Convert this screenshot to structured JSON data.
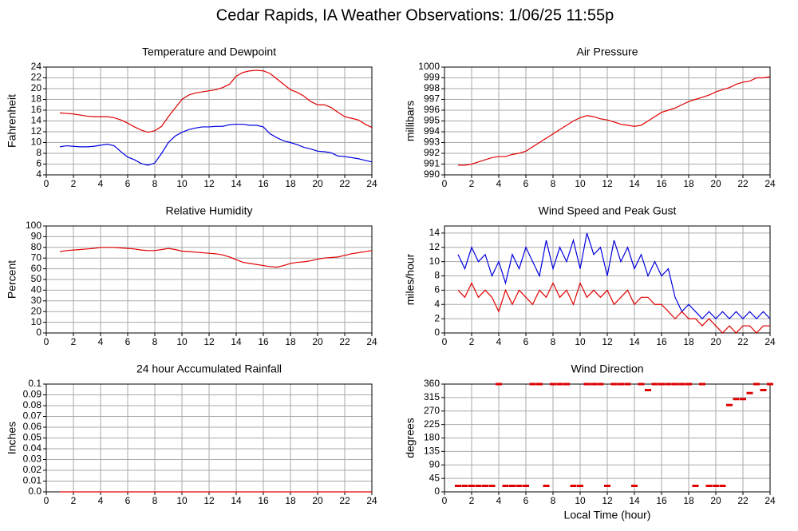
{
  "title": "Cedar Rapids, IA Weather Observations: 1/06/25 11:55p",
  "chart_data": [
    {
      "type": "line",
      "title": "Temperature and Dewpoint",
      "ylabel": "Fahrenheit",
      "xlim": [
        0,
        24
      ],
      "xticks": [
        0,
        2,
        4,
        6,
        8,
        10,
        12,
        14,
        16,
        18,
        20,
        22,
        24
      ],
      "ylim": [
        4,
        24
      ],
      "yticks": [
        4,
        6,
        8,
        10,
        12,
        14,
        16,
        18,
        20,
        22,
        24
      ],
      "grid": true,
      "x": [
        1,
        1.5,
        2,
        2.5,
        3,
        3.5,
        4,
        4.5,
        5,
        5.5,
        6,
        6.5,
        7,
        7.5,
        8,
        8.5,
        9,
        9.5,
        10,
        10.5,
        11,
        11.5,
        12,
        12.5,
        13,
        13.5,
        14,
        14.5,
        15,
        15.5,
        16,
        16.5,
        17,
        17.5,
        18,
        18.5,
        19,
        19.5,
        20,
        20.5,
        21,
        21.5,
        22,
        22.5,
        23,
        23.5,
        24
      ],
      "series": [
        {
          "color": "#e00000",
          "values": [
            15.5,
            15.4,
            15.3,
            15.1,
            14.9,
            14.8,
            14.8,
            14.8,
            14.6,
            14.2,
            13.6,
            12.9,
            12.3,
            11.9,
            12.2,
            13.0,
            14.8,
            16.4,
            18.0,
            18.8,
            19.2,
            19.4,
            19.6,
            19.8,
            20.2,
            20.8,
            22.3,
            23.0,
            23.3,
            23.4,
            23.3,
            22.8,
            21.8,
            20.8,
            19.8,
            19.3,
            18.6,
            17.6,
            17.0,
            17.0,
            16.5,
            15.6,
            14.8,
            14.5,
            14.2,
            13.4,
            12.8
          ]
        },
        {
          "color": "#0000e0",
          "values": [
            9.2,
            9.4,
            9.3,
            9.2,
            9.2,
            9.3,
            9.5,
            9.7,
            9.4,
            8.3,
            7.3,
            6.8,
            6.1,
            5.8,
            6.2,
            8.0,
            10.0,
            11.2,
            11.9,
            12.4,
            12.7,
            12.9,
            12.9,
            13.0,
            13.0,
            13.3,
            13.4,
            13.4,
            13.2,
            13.2,
            12.9,
            11.6,
            10.9,
            10.3,
            10.0,
            9.6,
            9.1,
            8.8,
            8.4,
            8.3,
            8.1,
            7.5,
            7.4,
            7.2,
            7.0,
            6.7,
            6.4
          ]
        }
      ]
    },
    {
      "type": "line",
      "title": "Air Pressure",
      "ylabel": "millibars",
      "xlim": [
        0,
        24
      ],
      "xticks": [
        0,
        2,
        4,
        6,
        8,
        10,
        12,
        14,
        16,
        18,
        20,
        22,
        24
      ],
      "ylim": [
        990,
        1000
      ],
      "yticks": [
        990,
        991,
        992,
        993,
        994,
        995,
        996,
        997,
        998,
        999,
        1000
      ],
      "grid": true,
      "x": [
        1,
        1.5,
        2,
        2.5,
        3,
        3.5,
        4,
        4.5,
        5,
        5.5,
        6,
        6.5,
        7,
        7.5,
        8,
        8.5,
        9,
        9.5,
        10,
        10.5,
        11,
        11.5,
        12,
        12.5,
        13,
        13.5,
        14,
        14.5,
        15,
        15.5,
        16,
        16.5,
        17,
        17.5,
        18,
        18.5,
        19,
        19.5,
        20,
        20.5,
        21,
        21.5,
        22,
        22.5,
        23,
        23.5,
        24
      ],
      "series": [
        {
          "color": "#e00000",
          "values": [
            990.9,
            990.9,
            991.0,
            991.2,
            991.4,
            991.6,
            991.7,
            991.7,
            991.9,
            992.0,
            992.2,
            992.6,
            993.0,
            993.4,
            993.8,
            994.2,
            994.6,
            995.0,
            995.3,
            995.5,
            995.4,
            995.2,
            995.1,
            994.9,
            994.7,
            994.6,
            994.5,
            994.6,
            995.0,
            995.4,
            995.8,
            996.0,
            996.2,
            996.5,
            996.8,
            997.0,
            997.2,
            997.4,
            997.7,
            997.9,
            998.1,
            998.4,
            998.6,
            998.7,
            999.0,
            999.0,
            999.1
          ]
        }
      ]
    },
    {
      "type": "line",
      "title": "Relative Humidity",
      "ylabel": "Percent",
      "xlim": [
        0,
        24
      ],
      "xticks": [
        0,
        2,
        4,
        6,
        8,
        10,
        12,
        14,
        16,
        18,
        20,
        22,
        24
      ],
      "ylim": [
        0,
        100
      ],
      "yticks": [
        0,
        10,
        20,
        30,
        40,
        50,
        60,
        70,
        80,
        90,
        100
      ],
      "grid": true,
      "x": [
        1,
        1.5,
        2,
        2.5,
        3,
        3.5,
        4,
        4.5,
        5,
        5.5,
        6,
        6.5,
        7,
        7.5,
        8,
        8.5,
        9,
        9.5,
        10,
        10.5,
        11,
        11.5,
        12,
        12.5,
        13,
        13.5,
        14,
        14.5,
        15,
        15.5,
        16,
        16.5,
        17,
        17.5,
        18,
        18.5,
        19,
        19.5,
        20,
        20.5,
        21,
        21.5,
        22,
        22.5,
        23,
        23.5,
        24
      ],
      "series": [
        {
          "color": "#e00000",
          "values": [
            76,
            77,
            77.5,
            78,
            78.5,
            79,
            80,
            80,
            80,
            79.5,
            79,
            78.5,
            77.5,
            77,
            77,
            78,
            79,
            78,
            76.5,
            76,
            75.5,
            75,
            74.5,
            74,
            73,
            71,
            68.5,
            66,
            65,
            64,
            63,
            62,
            61.5,
            63,
            65,
            66,
            66.5,
            67.5,
            69,
            70,
            70.5,
            71,
            72.5,
            74,
            75,
            76,
            77
          ]
        }
      ]
    },
    {
      "type": "line",
      "title": "Wind Speed and Peak Gust",
      "ylabel": "miles/hour",
      "xlim": [
        0,
        24
      ],
      "xticks": [
        0,
        2,
        4,
        6,
        8,
        10,
        12,
        14,
        16,
        18,
        20,
        22,
        24
      ],
      "ylim": [
        0,
        15
      ],
      "yticks": [
        0,
        2,
        4,
        6,
        8,
        10,
        12,
        14
      ],
      "grid": true,
      "x": [
        1,
        1.5,
        2,
        2.5,
        3,
        3.5,
        4,
        4.5,
        5,
        5.5,
        6,
        6.5,
        7,
        7.5,
        8,
        8.5,
        9,
        9.5,
        10,
        10.5,
        11,
        11.5,
        12,
        12.5,
        13,
        13.5,
        14,
        14.5,
        15,
        15.5,
        16,
        16.5,
        17,
        17.5,
        18,
        18.5,
        19,
        19.5,
        20,
        20.5,
        21,
        21.5,
        22,
        22.5,
        23,
        23.5,
        24
      ],
      "series": [
        {
          "color": "#0000e0",
          "values": [
            11,
            9,
            12,
            10,
            11,
            8,
            10,
            7,
            11,
            9,
            12,
            10,
            8,
            13,
            9,
            12,
            10,
            13,
            9,
            14,
            11,
            12,
            8,
            13,
            10,
            12,
            9,
            11,
            8,
            10,
            8,
            9,
            5,
            3,
            4,
            3,
            2,
            3,
            2,
            3,
            2,
            3,
            2,
            3,
            2,
            3,
            2
          ]
        },
        {
          "color": "#e00000",
          "values": [
            6,
            5,
            7,
            5,
            6,
            5,
            3,
            6,
            4,
            6,
            5,
            4,
            6,
            5,
            7,
            5,
            6,
            4,
            7,
            5,
            6,
            5,
            6,
            4,
            5,
            6,
            4,
            5,
            5,
            4,
            4,
            3,
            2,
            3,
            2,
            2,
            1,
            2,
            1,
            0,
            1,
            0,
            1,
            1,
            0,
            1,
            1
          ]
        }
      ]
    },
    {
      "type": "line",
      "title": "24 hour Accumulated Rainfall",
      "ylabel": "Inches",
      "xlim": [
        0,
        24
      ],
      "xticks": [
        0,
        2,
        4,
        6,
        8,
        10,
        12,
        14,
        16,
        18,
        20,
        22,
        24
      ],
      "ylim": [
        0,
        0.1
      ],
      "yticks": [
        {
          "value": 0,
          "label": "0.0"
        },
        0.01,
        0.02,
        0.03,
        0.04,
        0.05,
        0.06,
        0.07,
        0.08,
        0.09,
        0.1
      ],
      "grid": true,
      "x": [
        1,
        24
      ],
      "series": [
        {
          "color": "#e00000",
          "values": [
            0,
            0
          ]
        }
      ]
    },
    {
      "type": "scatter",
      "title": "Wind Direction",
      "ylabel": "degrees",
      "xlabel": "Local Time (hour)",
      "xlim": [
        0,
        24
      ],
      "xticks": [
        0,
        2,
        4,
        6,
        8,
        10,
        12,
        14,
        16,
        18,
        20,
        22,
        24
      ],
      "ylim": [
        0,
        360
      ],
      "yticks": [
        0,
        45,
        90,
        135,
        180,
        225,
        270,
        315,
        360
      ],
      "grid": true,
      "x": [
        1,
        1.5,
        2,
        2.5,
        3,
        3.5,
        4,
        4.5,
        5,
        5.5,
        6,
        6.5,
        7,
        7.5,
        8,
        8.5,
        9,
        9.5,
        10,
        10.5,
        11,
        11.5,
        12,
        12.5,
        13,
        13.5,
        14,
        14.5,
        15,
        15.5,
        16,
        16.5,
        17,
        17.5,
        18,
        18.5,
        19,
        19.5,
        20,
        20.5,
        21,
        21.5,
        22,
        22.5,
        23,
        23.5,
        24
      ],
      "series": [
        {
          "color": "#e00000",
          "values": [
            20,
            20,
            20,
            20,
            20,
            20,
            360,
            20,
            20,
            20,
            20,
            360,
            360,
            20,
            360,
            360,
            360,
            20,
            20,
            360,
            360,
            360,
            20,
            360,
            360,
            360,
            20,
            360,
            340,
            360,
            360,
            360,
            360,
            360,
            360,
            20,
            360,
            20,
            20,
            20,
            290,
            310,
            310,
            330,
            360,
            340,
            360
          ]
        }
      ]
    }
  ]
}
